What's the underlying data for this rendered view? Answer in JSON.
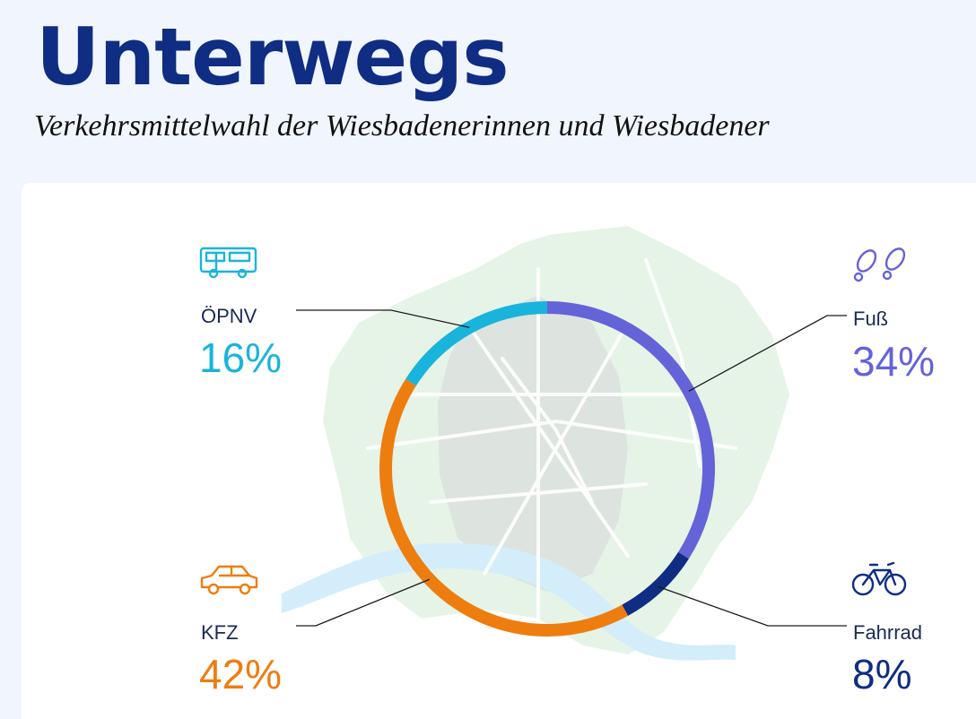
{
  "title": "Unterwegs",
  "subtitle": "Verkehrsmittelwahl der Wiesbadenerinnen und Wiesbadener",
  "colors": {
    "oepnv": "#19b4dc",
    "fuss": "#6563d8",
    "fahrrad": "#0f2d82",
    "kfz": "#ee7d0f"
  },
  "chart_data": {
    "type": "pie",
    "series": [
      {
        "name": "Fuß",
        "value": 34,
        "label": "34%",
        "icon": "footprints-icon"
      },
      {
        "name": "Fahrrad",
        "value": 8,
        "label": "8%",
        "icon": "bicycle-icon"
      },
      {
        "name": "KFZ",
        "value": 42,
        "label": "42%",
        "icon": "car-icon"
      },
      {
        "name": "ÖPNV",
        "value": 16,
        "label": "16%",
        "icon": "bus-icon"
      }
    ]
  }
}
